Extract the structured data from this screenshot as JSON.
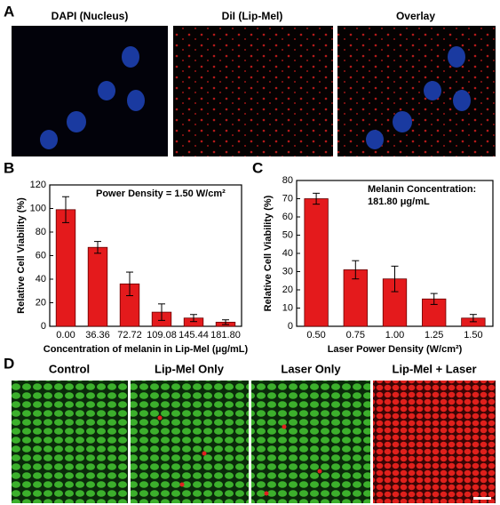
{
  "panel_labels": [
    "A",
    "B",
    "C",
    "D"
  ],
  "panel_a": {
    "titles": [
      "DAPI (Nucleus)",
      "DiI (Lip-Mel)",
      "Overlay"
    ]
  },
  "chart_data": [
    {
      "type": "bar",
      "y_label": "Relative Cell Viability (%)",
      "x_label": "Concentration of melanin in Lip-Mel (μg/mL)",
      "annotation": [
        "Power Density = 1.50 W/cm²"
      ],
      "categories": [
        "0.00",
        "36.36",
        "72.72",
        "109.08",
        "145.44",
        "181.80"
      ],
      "values": [
        99,
        67,
        36,
        12,
        7,
        3.5
      ],
      "errors": [
        11,
        5,
        10,
        7,
        3,
        2
      ],
      "color": "#e41a1c",
      "ylim": [
        0,
        120
      ],
      "yticks": [
        0,
        20,
        40,
        60,
        80,
        100,
        120
      ]
    },
    {
      "type": "bar",
      "y_label": "Relative Cell Viability (%)",
      "x_label": "Laser Power Density (W/cm²)",
      "annotation": [
        "Melanin Concentration:",
        "181.80 μg/mL"
      ],
      "categories": [
        "0.50",
        "0.75",
        "1.00",
        "1.25",
        "1.50"
      ],
      "values": [
        70,
        31,
        26,
        15,
        4.5
      ],
      "errors": [
        3,
        5,
        7,
        3,
        2
      ],
      "color": "#e41a1c",
      "ylim": [
        0,
        80
      ],
      "yticks": [
        0,
        10,
        20,
        30,
        40,
        50,
        60,
        70,
        80
      ]
    }
  ],
  "panel_d": {
    "titles": [
      "Control",
      "Lip-Mel Only",
      "Laser Only",
      "Lip-Mel + Laser"
    ]
  }
}
